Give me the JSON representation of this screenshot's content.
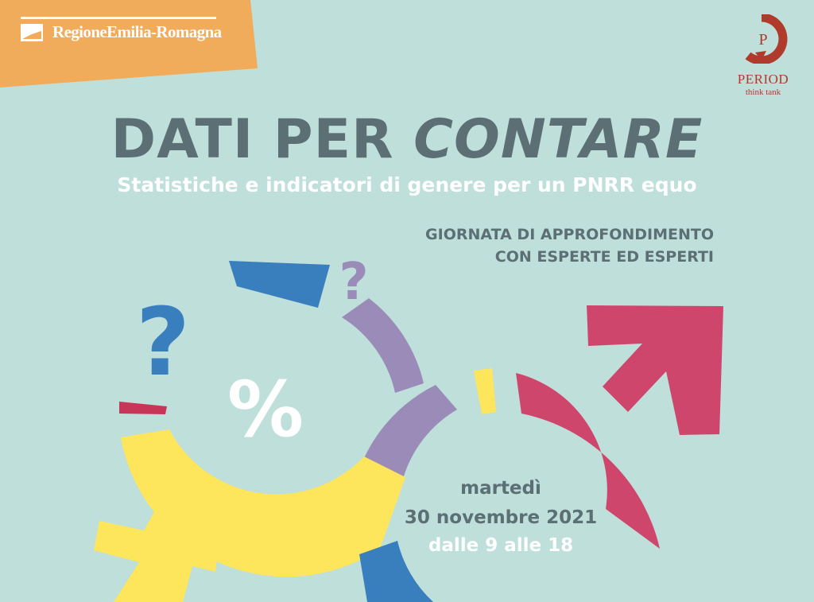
{
  "header": {
    "org_name": "RegioneEmilia-Romagna",
    "partner_name": "PERIOD",
    "partner_tagline": "think tank",
    "partner_initial": "P"
  },
  "main": {
    "title": "DATI PER CONTARE",
    "title_plain": "DATI PER",
    "title_italic": "CONTARE",
    "subtitle": "Statistiche e indicatori di genere per un PNRR equo",
    "event_line1": "GIORNATA DI APPROFONDIMENTO",
    "event_line2": "CON ESPERTE ED ESPERTI"
  },
  "date": {
    "day": "martedì",
    "full_date": "30 novembre 2021",
    "time": "dalle 9 alle 18"
  },
  "graphics": {
    "question_mark": "?",
    "percent_sign": "%"
  },
  "colors": {
    "background": "#bfdfda",
    "orange_tab": "#f0ab5b",
    "slate_text": "#5b6f75",
    "blue": "#3a7fbd",
    "purple": "#9a8bb8",
    "yellow": "#fde55c",
    "magenta": "#cf466d",
    "crimson": "#c73658",
    "period_red": "#b03b2c"
  }
}
